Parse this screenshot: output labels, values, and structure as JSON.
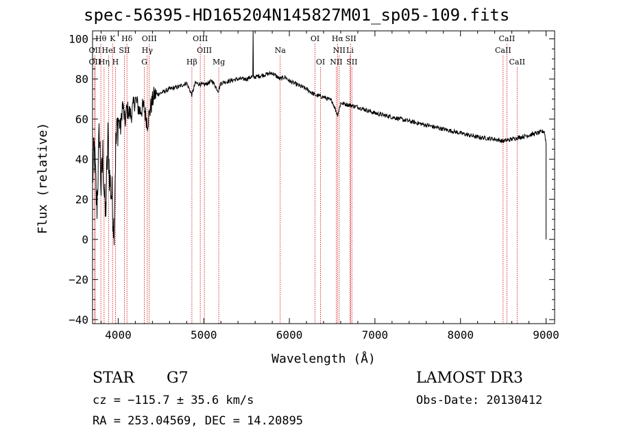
{
  "chart_data": {
    "type": "line",
    "title": "spec-56395-HD165204N145827M01_sp05-109.fits",
    "xlabel": "Wavelength (Å)",
    "ylabel": "Flux (relative)",
    "xlim": [
      3700,
      9100
    ],
    "ylim": [
      -42,
      104
    ],
    "x_ticks": [
      4000,
      5000,
      6000,
      7000,
      8000,
      9000
    ],
    "x_tick_labels": [
      "4000",
      "5000",
      "6000",
      "7000",
      "8000",
      "9000"
    ],
    "y_ticks": [
      -40,
      -20,
      0,
      20,
      40,
      60,
      80,
      100
    ],
    "y_tick_labels": [
      "−40",
      "−20",
      "0",
      "20",
      "40",
      "60",
      "80",
      "100"
    ],
    "spectrum_anchors": [
      [
        3700,
        30
      ],
      [
        3720,
        45
      ],
      [
        3750,
        15
      ],
      [
        3780,
        55
      ],
      [
        3800,
        25
      ],
      [
        3820,
        42
      ],
      [
        3850,
        10
      ],
      [
        3880,
        50
      ],
      [
        3900,
        30
      ],
      [
        3930,
        20
      ],
      [
        3950,
        5
      ],
      [
        3970,
        45
      ],
      [
        4000,
        60
      ],
      [
        4030,
        55
      ],
      [
        4050,
        68
      ],
      [
        4080,
        58
      ],
      [
        4100,
        65
      ],
      [
        4150,
        62
      ],
      [
        4200,
        70
      ],
      [
        4250,
        64
      ],
      [
        4300,
        66
      ],
      [
        4340,
        58
      ],
      [
        4380,
        66
      ],
      [
        4420,
        72
      ],
      [
        4500,
        73
      ],
      [
        4600,
        75
      ],
      [
        4700,
        76
      ],
      [
        4800,
        78
      ],
      [
        4860,
        72
      ],
      [
        4900,
        78
      ],
      [
        5000,
        77
      ],
      [
        5100,
        79
      ],
      [
        5170,
        74
      ],
      [
        5200,
        78
      ],
      [
        5300,
        79
      ],
      [
        5400,
        80
      ],
      [
        5500,
        80
      ],
      [
        5550,
        81
      ],
      [
        5600,
        81
      ],
      [
        5700,
        82
      ],
      [
        5800,
        83
      ],
      [
        5890,
        80
      ],
      [
        5950,
        81
      ],
      [
        6000,
        79
      ],
      [
        6100,
        77
      ],
      [
        6200,
        75
      ],
      [
        6300,
        72
      ],
      [
        6400,
        71
      ],
      [
        6500,
        69
      ],
      [
        6563,
        62
      ],
      [
        6600,
        68
      ],
      [
        6700,
        67
      ],
      [
        6800,
        66
      ],
      [
        7000,
        63
      ],
      [
        7200,
        61
      ],
      [
        7400,
        59
      ],
      [
        7600,
        57
      ],
      [
        7800,
        55
      ],
      [
        8000,
        53
      ],
      [
        8200,
        51
      ],
      [
        8400,
        50
      ],
      [
        8500,
        49
      ],
      [
        8600,
        50
      ],
      [
        8700,
        51
      ],
      [
        8800,
        52
      ],
      [
        8900,
        53
      ],
      [
        8980,
        54
      ],
      [
        9000,
        48
      ]
    ],
    "spectrum_spikes": [
      [
        5577,
        104
      ],
      [
        9020,
        0
      ]
    ],
    "lines": [
      {
        "label": "Hθ",
        "x": 3797,
        "row": 0
      },
      {
        "label": "K",
        "x": 3934,
        "row": 0
      },
      {
        "label": "Hδ",
        "x": 4102,
        "row": 0
      },
      {
        "label": "OIII",
        "x": 4363,
        "row": 0
      },
      {
        "label": "OIII",
        "x": 4959,
        "row": 0
      },
      {
        "label": "OI",
        "x": 6300,
        "row": 0
      },
      {
        "label": "Hα",
        "x": 6563,
        "row": 0
      },
      {
        "label": "SII",
        "x": 6717,
        "row": 0
      },
      {
        "label": "CaII",
        "x": 8542,
        "row": 0
      },
      {
        "label": "OII",
        "x": 3727,
        "row": 1
      },
      {
        "label": "HeI",
        "x": 3889,
        "row": 1
      },
      {
        "label": "SII",
        "x": 4072,
        "row": 1
      },
      {
        "label": "Hγ",
        "x": 4340,
        "row": 1
      },
      {
        "label": "OIII",
        "x": 5007,
        "row": 1
      },
      {
        "label": "Na",
        "x": 5893,
        "row": 1
      },
      {
        "label": "NII",
        "x": 6583,
        "row": 1
      },
      {
        "label": "Li",
        "x": 6708,
        "row": 1
      },
      {
        "label": "CaII",
        "x": 8498,
        "row": 1
      },
      {
        "label": "OII",
        "x": 3727,
        "row": 2
      },
      {
        "label": "Hη",
        "x": 3835,
        "row": 2
      },
      {
        "label": "H",
        "x": 3968,
        "row": 2
      },
      {
        "label": "G",
        "x": 4305,
        "row": 2
      },
      {
        "label": "Hβ",
        "x": 4861,
        "row": 2
      },
      {
        "label": "Mg",
        "x": 5175,
        "row": 2
      },
      {
        "label": "OI",
        "x": 6364,
        "row": 2
      },
      {
        "label": "NII",
        "x": 6548,
        "row": 2
      },
      {
        "label": "SII",
        "x": 6731,
        "row": 2
      },
      {
        "label": "CaII",
        "x": 8662,
        "row": 2
      }
    ]
  },
  "info": {
    "object_type": "STAR",
    "subclass": "G7",
    "survey": "LAMOST DR3",
    "cz": "cz = −115.7 ± 35.6 km/s",
    "obs_date": "Obs-Date: 20130412",
    "coords": "RA = 253.04569, DEC =  14.20895"
  },
  "colors": {
    "line_marker": "#cc0000",
    "spectrum": "#000000",
    "axes": "#000000"
  }
}
